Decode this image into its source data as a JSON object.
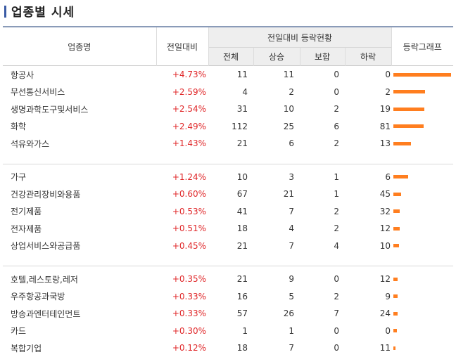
{
  "page": {
    "title": "업종별 시세"
  },
  "headers": {
    "name": "업종명",
    "change": "전일대비",
    "group": "전일대비 등락현황",
    "total": "전체",
    "up": "상승",
    "flat": "보합",
    "down": "하락",
    "graph": "등락그래프"
  },
  "rows": [
    {
      "name": "항공사",
      "change": "+4.73%",
      "total": "11",
      "up": "11",
      "flat": "0",
      "down": "0",
      "bar_pct": 100
    },
    {
      "name": "무선통신서비스",
      "change": "+2.59%",
      "total": "4",
      "up": "2",
      "flat": "0",
      "down": "2",
      "bar_pct": 55
    },
    {
      "name": "생명과학도구및서비스",
      "change": "+2.54%",
      "total": "31",
      "up": "10",
      "flat": "2",
      "down": "19",
      "bar_pct": 54
    },
    {
      "name": "화학",
      "change": "+2.49%",
      "total": "112",
      "up": "25",
      "flat": "6",
      "down": "81",
      "bar_pct": 53
    },
    {
      "name": "석유와가스",
      "change": "+1.43%",
      "total": "21",
      "up": "6",
      "flat": "2",
      "down": "13",
      "bar_pct": 30
    },
    {
      "name": "가구",
      "change": "+1.24%",
      "total": "10",
      "up": "3",
      "flat": "1",
      "down": "6",
      "bar_pct": 26
    },
    {
      "name": "건강관리장비와용품",
      "change": "+0.60%",
      "total": "67",
      "up": "21",
      "flat": "1",
      "down": "45",
      "bar_pct": 13
    },
    {
      "name": "전기제품",
      "change": "+0.53%",
      "total": "41",
      "up": "7",
      "flat": "2",
      "down": "32",
      "bar_pct": 11
    },
    {
      "name": "전자제품",
      "change": "+0.51%",
      "total": "18",
      "up": "4",
      "flat": "2",
      "down": "12",
      "bar_pct": 11
    },
    {
      "name": "상업서비스와공급품",
      "change": "+0.45%",
      "total": "21",
      "up": "7",
      "flat": "4",
      "down": "10",
      "bar_pct": 10
    },
    {
      "name": "호텔,레스토랑,레저",
      "change": "+0.35%",
      "total": "21",
      "up": "9",
      "flat": "0",
      "down": "12",
      "bar_pct": 7
    },
    {
      "name": "우주항공과국방",
      "change": "+0.33%",
      "total": "16",
      "up": "5",
      "flat": "2",
      "down": "9",
      "bar_pct": 7
    },
    {
      "name": "방송과엔터테인먼트",
      "change": "+0.33%",
      "total": "57",
      "up": "26",
      "flat": "7",
      "down": "24",
      "bar_pct": 7
    },
    {
      "name": "카드",
      "change": "+0.30%",
      "total": "1",
      "up": "1",
      "flat": "0",
      "down": "0",
      "bar_pct": 6
    },
    {
      "name": "복합기업",
      "change": "+0.12%",
      "total": "18",
      "up": "7",
      "flat": "0",
      "down": "11",
      "bar_pct": 3
    }
  ],
  "colors": {
    "change_up": "#e0282a",
    "bar": "#ff7e1f",
    "title_mark": "#3a5ba5"
  }
}
